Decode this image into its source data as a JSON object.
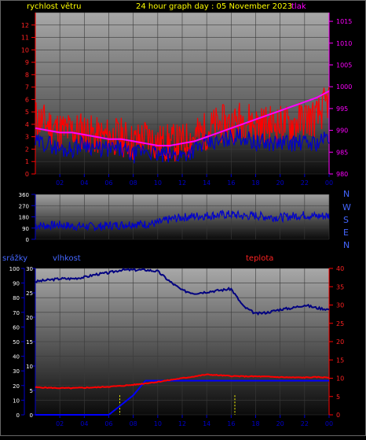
{
  "header": {
    "wind_label": "rychlost větru",
    "title": "24 hour graph day : 05 November 2023",
    "pressure_label": "tlak"
  },
  "compass": [
    "N",
    "W",
    "S",
    "E",
    "N"
  ],
  "labels": {
    "rain": "srážky",
    "humidity": "vlhkost",
    "temp": "teplota"
  },
  "colors": {
    "wind_gust": "#ff0000",
    "wind_avg": "#0000cc",
    "pressure": "#ff00ff",
    "direction": "#0000cc",
    "humidity": "#000080",
    "temperature": "#ff0000",
    "rain": "#0000ff",
    "rain_marker": "#ffff00"
  },
  "x_ticks": [
    "02",
    "04",
    "06",
    "08",
    "10",
    "12",
    "14",
    "16",
    "18",
    "20",
    "22",
    "00"
  ],
  "chart_data": [
    {
      "type": "line",
      "name": "wind-pressure",
      "x": [
        0,
        1,
        2,
        3,
        4,
        5,
        6,
        7,
        8,
        9,
        10,
        11,
        12,
        13,
        14,
        15,
        16,
        17,
        18,
        19,
        20,
        21,
        22,
        23,
        24
      ],
      "x_ticks": [
        "02",
        "04",
        "06",
        "08",
        "10",
        "12",
        "14",
        "16",
        "18",
        "20",
        "22",
        "00"
      ],
      "series": [
        {
          "name": "rychlost větru",
          "axis": "left",
          "values": [
            4.5,
            4.0,
            3.5,
            3.5,
            3.5,
            3.0,
            3.0,
            3.0,
            2.5,
            3.0,
            2.5,
            2.5,
            2.5,
            3.0,
            3.5,
            4.0,
            4.0,
            4.5,
            4.0,
            4.0,
            4.0,
            4.0,
            4.5,
            4.5,
            6.0
          ]
        },
        {
          "name": "average",
          "axis": "left",
          "values": [
            2.5,
            2.5,
            2.0,
            2.0,
            2.5,
            2.0,
            2.0,
            2.0,
            1.5,
            2.0,
            1.5,
            1.5,
            1.5,
            2.0,
            2.5,
            2.5,
            3.0,
            3.0,
            2.5,
            2.5,
            2.5,
            2.5,
            2.5,
            2.5,
            3.0
          ]
        },
        {
          "name": "tlak",
          "axis": "right",
          "values": [
            990.5,
            990,
            989.5,
            989.5,
            989,
            988.5,
            988,
            988,
            987.5,
            987,
            986.5,
            986.5,
            987,
            987.5,
            988.5,
            989.5,
            990.5,
            991.5,
            992.5,
            993.5,
            994.5,
            995.5,
            996.5,
            997.5,
            999
          ]
        }
      ],
      "ylim": [
        0,
        13
      ],
      "y_ticks": [
        0,
        1,
        2,
        3,
        4,
        5,
        6,
        7,
        8,
        9,
        10,
        11,
        12
      ],
      "y2lim": [
        980,
        1017
      ],
      "y2_ticks": [
        980,
        985,
        990,
        995,
        1000,
        1005,
        1010,
        1015
      ]
    },
    {
      "type": "line",
      "name": "wind-direction",
      "x": [
        0,
        1,
        2,
        3,
        4,
        5,
        6,
        7,
        8,
        9,
        10,
        11,
        12,
        13,
        14,
        15,
        16,
        17,
        18,
        19,
        20,
        21,
        22,
        23,
        24
      ],
      "series": [
        {
          "name": "direction",
          "values": [
            110,
            110,
            115,
            105,
            105,
            100,
            110,
            115,
            125,
            120,
            130,
            160,
            175,
            185,
            190,
            195,
            200,
            185,
            190,
            180,
            175,
            185,
            195,
            185,
            190
          ]
        }
      ],
      "ylim": [
        0,
        360
      ],
      "y_ticks": [
        0,
        90,
        180,
        270,
        360
      ]
    },
    {
      "type": "line",
      "name": "rain-humidity-temperature",
      "x": [
        0,
        1,
        2,
        3,
        4,
        5,
        6,
        7,
        8,
        9,
        10,
        11,
        12,
        13,
        14,
        15,
        16,
        17,
        18,
        19,
        20,
        21,
        22,
        23,
        24
      ],
      "series": [
        {
          "name": "vlhkost",
          "axis": "left-rain",
          "values": [
            91,
            92,
            93,
            93,
            94,
            96,
            97,
            99,
            99,
            99,
            98,
            91,
            85,
            83,
            84,
            85,
            86,
            74,
            69,
            70,
            72,
            73,
            75,
            73,
            72
          ]
        },
        {
          "name": "teplota",
          "axis": "right",
          "values": [
            7.5,
            7.4,
            7.3,
            7.3,
            7.4,
            7.5,
            7.7,
            7.9,
            8.2,
            8.6,
            9.0,
            9.5,
            10,
            10.5,
            11,
            10.8,
            10.6,
            10.5,
            10.5,
            10.4,
            10.3,
            10.2,
            10.2,
            10.3,
            10.2
          ]
        },
        {
          "name": "srážky",
          "axis": "left-rain",
          "values": [
            0,
            0,
            0,
            0,
            0,
            0,
            0,
            2,
            4,
            7,
            7,
            7,
            7,
            7,
            7,
            7,
            7,
            7,
            7,
            7,
            7,
            7,
            7,
            7,
            7
          ]
        }
      ],
      "ylim": [
        0,
        100
      ],
      "y_ticks": [
        0,
        10,
        20,
        30,
        40,
        50,
        60,
        70,
        80,
        90,
        100
      ],
      "y_rain_lim": [
        0,
        30
      ],
      "y_rain_ticks": [
        0,
        5,
        10,
        15,
        20,
        25,
        30
      ],
      "y2lim": [
        0,
        40
      ],
      "y2_ticks": [
        0,
        5,
        10,
        15,
        20,
        25,
        30,
        35,
        40
      ]
    }
  ]
}
